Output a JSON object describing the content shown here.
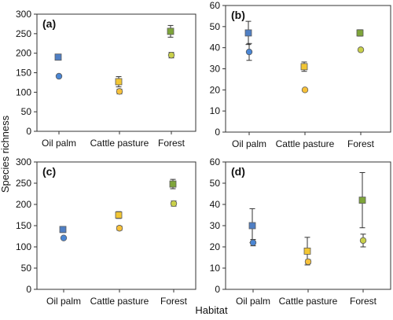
{
  "figure": {
    "ylabel": "Species richness",
    "xlabel": "Habitat"
  },
  "chart_data": [
    {
      "panel_label": "(a)",
      "type": "scatter",
      "categories": [
        "Oil palm",
        "Cattle pasture",
        "Forest"
      ],
      "ylim": [
        0,
        300
      ],
      "yticks": [
        0,
        50,
        100,
        150,
        200,
        250,
        300
      ],
      "series": [
        {
          "marker": "square",
          "values": [
            190,
            127,
            256
          ],
          "err": [
            7,
            13,
            15
          ]
        },
        {
          "marker": "circle",
          "values": [
            141,
            102,
            195
          ],
          "err": [
            3,
            6,
            7
          ]
        }
      ]
    },
    {
      "panel_label": "(b)",
      "type": "scatter",
      "categories": [
        "Oil palm",
        "Cattle pasture",
        "Forest"
      ],
      "ylim": [
        0,
        60
      ],
      "yticks": [
        0,
        10,
        20,
        30,
        40,
        50,
        60
      ],
      "series": [
        {
          "marker": "square",
          "values": [
            47,
            31,
            47
          ],
          "err": [
            5.5,
            2.2,
            1.5
          ]
        },
        {
          "marker": "circle",
          "values": [
            38,
            20,
            39
          ],
          "err": [
            4,
            0.5,
            0.6
          ]
        }
      ]
    },
    {
      "panel_label": "(c)",
      "type": "scatter",
      "categories": [
        "Oil palm",
        "Cattle pasture",
        "Forest"
      ],
      "ylim": [
        0,
        300
      ],
      "yticks": [
        0,
        50,
        100,
        150,
        200,
        250,
        300
      ],
      "series": [
        {
          "marker": "square",
          "values": [
            141,
            175,
            248
          ],
          "err": [
            7,
            8,
            11
          ]
        },
        {
          "marker": "circle",
          "values": [
            121,
            144,
            202
          ],
          "err": [
            3,
            5,
            6
          ]
        }
      ]
    },
    {
      "panel_label": "(d)",
      "type": "scatter",
      "categories": [
        "Oil palm",
        "Cattle pasture",
        "Forest"
      ],
      "ylim": [
        0,
        60
      ],
      "yticks": [
        0,
        10,
        20,
        30,
        40,
        50,
        60
      ],
      "series": [
        {
          "marker": "square",
          "values": [
            30,
            18,
            42
          ],
          "err": [
            8,
            6.5,
            13
          ]
        },
        {
          "marker": "circle",
          "values": [
            22,
            13,
            23
          ],
          "err": [
            1.5,
            1,
            3
          ]
        }
      ]
    }
  ],
  "colors": {
    "oil_palm_square": "#4f7fc4",
    "oil_palm_circle": "#4a86d4",
    "cattle_pasture_square": "#f2c634",
    "cattle_pasture_circle": "#f7c13a",
    "forest_square": "#7ea53a",
    "forest_circle": "#c9d04a",
    "marker_edge": "#5a5a5a",
    "axis": "#333333",
    "error_bar": "#333333"
  }
}
